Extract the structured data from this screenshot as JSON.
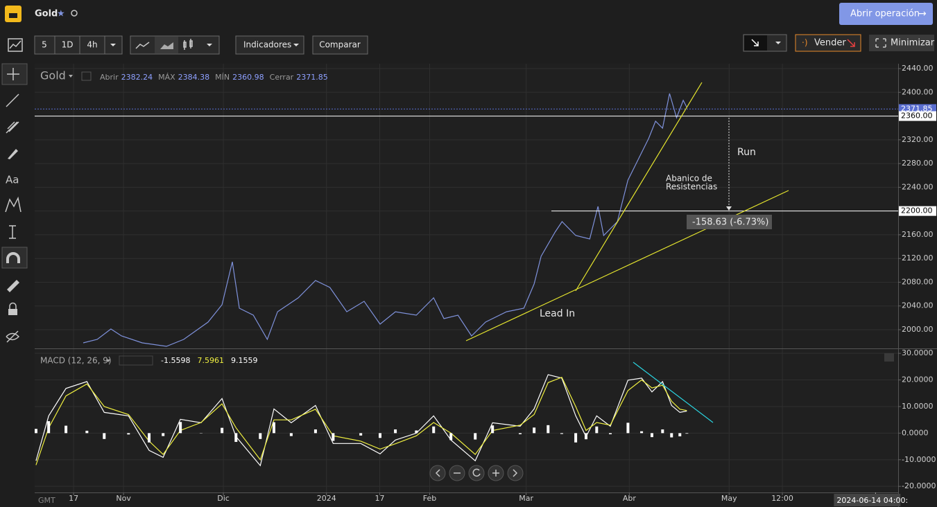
{
  "header": {
    "symbol": "Gold",
    "open_trade_button": "Abrir operación"
  },
  "toolbar": {
    "intervals": [
      "5",
      "1D",
      "4h"
    ],
    "indicators": "Indicadores",
    "compare": "Comparar",
    "sell": "Vender",
    "minimize": "Minimizar"
  },
  "sidebar": {
    "text_tool": "Aa"
  },
  "chart_data": [
    {
      "type": "line",
      "ohlc": {
        "labels": [
          "Abrir",
          "MÁX",
          "MÍN",
          "Cerrar"
        ],
        "values": [
          2382.24,
          2384.38,
          2360.98,
          2371.85
        ]
      },
      "x": [
        18.9,
        23.1,
        27.2,
        30.4,
        36.6,
        43.9,
        49.1,
        56.4,
        60.6,
        63.7,
        65.8,
        70.0,
        74.2,
        77.3,
        83.5,
        88.7,
        93.0,
        98.1,
        103.3,
        108.1,
        112.7,
        119.0,
        124.2,
        127.3,
        131.5,
        135.6,
        139.8,
        146.1,
        151.3,
        154.4,
        156.5,
        160.7,
        162.8,
        166.9,
        171.1,
        173.6,
        175.3,
        179.4,
        182.6,
        185.7,
        188.8,
        190.9,
        193.0,
        195.1,
        197.2,
        199.2,
        200.3
      ],
      "series": [
        {
          "name": "Gold",
          "color": "#7f92dc",
          "values": [
            1977.8,
            1983.7,
            2001.2,
            1989.5,
            1977.8,
            1972.0,
            1983.7,
            2012.8,
            2042.0,
            2114.4,
            2036.2,
            2024.5,
            1983.7,
            2030.3,
            2053.7,
            2082.9,
            2071.2,
            2030.3,
            2047.9,
            2009.3,
            2030.3,
            2024.5,
            2053.7,
            2018.7,
            2024.5,
            1989.5,
            2012.8,
            2030.3,
            2036.2,
            2077.0,
            2123.7,
            2164.6,
            2182.1,
            2158.7,
            2152.9,
            2207.8,
            2158.7,
            2182.1,
            2252.1,
            2287.1,
            2322.1,
            2351.3,
            2339.6,
            2398.0,
            2357.2,
            2386.4,
            2374.7
          ]
        }
      ],
      "xlim": [
        4.3,
        263.8
      ],
      "ylim": [
        1968.5,
        2448.2
      ],
      "yticks": [
        {
          "value": 2000,
          "label": "2000.00"
        },
        {
          "value": 2040,
          "label": "2040.00"
        },
        {
          "value": 2080,
          "label": "2080.00"
        },
        {
          "value": 2120,
          "label": "2120.00"
        },
        {
          "value": 2160,
          "label": "2160.00"
        },
        {
          "value": 2200,
          "label": "2200.00"
        },
        {
          "value": 2240,
          "label": "2240.00"
        },
        {
          "value": 2280,
          "label": "2280.00"
        },
        {
          "value": 2320,
          "label": "2320.00"
        },
        {
          "value": 2360,
          "label": "2360.00"
        },
        {
          "value": 2400,
          "label": "2400.00"
        },
        {
          "value": 2440,
          "label": "2440.00"
        }
      ],
      "price_lines": [
        {
          "value": 2371.85,
          "label": "2371.85",
          "color": "#5a6ed0"
        },
        {
          "value": 2360,
          "label": "2360.00",
          "color": "#ffffff"
        },
        {
          "value": 2200,
          "label": "2200.00",
          "color": "#ffffff"
        }
      ],
      "annotations": {
        "run": "Run",
        "fan": [
          "Abanico de",
          "Resistencias"
        ],
        "lead_in": "Lead In",
        "measure": "-158.63 (-6.73%)"
      },
      "grid": true
    },
    {
      "type": "line",
      "title": "MACD (12, 26, 9)",
      "legend_values": [
        {
          "value": -1.5598,
          "color": "#ffffff"
        },
        {
          "value": 7.5961,
          "color": "#f0f040"
        },
        {
          "value": 9.1559,
          "color": "#ffffff"
        }
      ],
      "x": [
        4.7,
        8.5,
        13.7,
        20.0,
        25.2,
        32.5,
        38.7,
        42.9,
        48.1,
        54.3,
        60.6,
        64.8,
        72.1,
        76.2,
        81.4,
        88.7,
        94.0,
        102.3,
        108.1,
        112.7,
        119.0,
        124.2,
        129.4,
        136.7,
        141.9,
        150.2,
        154.4,
        158.6,
        162.7,
        166.9,
        170.0,
        173.2,
        177.3,
        182.6,
        186.7,
        189.8,
        193.0,
        195.7,
        198.2,
        200.3
      ],
      "series": [
        {
          "color": "#ffffff",
          "values": [
            -10.4,
            6.5,
            16.8,
            19.4,
            7.8,
            6.5,
            -6.5,
            -9.1,
            5.2,
            3.9,
            13.0,
            -1.3,
            -12.2,
            9.1,
            3.9,
            10.4,
            -3.9,
            -3.9,
            -7.8,
            -2.6,
            0,
            6.5,
            -2.6,
            -10.4,
            3.9,
            2.6,
            9.1,
            22.0,
            20.7,
            6.5,
            -1.3,
            6.5,
            2.6,
            19.9,
            20.7,
            15.5,
            19.4,
            10.4,
            7.8,
            8.3
          ]
        },
        {
          "color": "#f0f040",
          "values": [
            -12,
            2,
            14,
            18.5,
            10,
            7,
            -3,
            -8,
            1,
            4,
            11,
            2,
            -10,
            5,
            5,
            9,
            -1,
            -3,
            -6,
            -4,
            -1,
            4,
            0,
            -8,
            1,
            3,
            7,
            19,
            21,
            10,
            1,
            4,
            3,
            16,
            20,
            17,
            18,
            12,
            9,
            8.5
          ]
        },
        {
          "type": "bar",
          "color": "#ffffff",
          "values": [
            1.6,
            4.5,
            2.8,
            0.9,
            -2.2,
            -0.5,
            -3.5,
            -1.1,
            4.2,
            -0.1,
            2.0,
            -3.3,
            -2.2,
            4.1,
            -1.1,
            1.4,
            -2.9,
            -0.9,
            -1.8,
            1.4,
            1.0,
            2.5,
            -2.6,
            -2.4,
            2.9,
            -0.4,
            2.1,
            3.0,
            -0.3,
            -3.5,
            -2.3,
            2.5,
            -0.4,
            3.9,
            0.7,
            -1.5,
            1.4,
            -1.6,
            -1.2,
            -0.2
          ]
        }
      ],
      "xlim": [
        4.3,
        263.8
      ],
      "ylim": [
        -22.3,
        31.6
      ],
      "yticks": [
        {
          "value": 30,
          "label": "30.0000"
        },
        {
          "value": 20,
          "label": "20.0000"
        },
        {
          "value": 10,
          "label": "10.0000"
        },
        {
          "value": 0,
          "label": "0.0000"
        },
        {
          "value": -10,
          "label": "-10.0000"
        },
        {
          "value": -20,
          "label": "-20.0000"
        }
      ],
      "xticks": [
        {
          "value": 16,
          "label": "17"
        },
        {
          "value": 31,
          "label": "Nov"
        },
        {
          "value": 61,
          "label": "Dic"
        },
        {
          "value": 92,
          "label": "2024"
        },
        {
          "value": 108,
          "label": "17"
        },
        {
          "value": 123,
          "label": "Feb"
        },
        {
          "value": 152,
          "label": "Mar"
        },
        {
          "value": 183,
          "label": "Abr"
        },
        {
          "value": 213,
          "label": "May"
        },
        {
          "value": 229,
          "label": "12:00"
        }
      ],
      "cursor": {
        "value": 257,
        "label": "2024-06-14 04:00:"
      },
      "timezone": "GMT",
      "grid": true
    }
  ]
}
